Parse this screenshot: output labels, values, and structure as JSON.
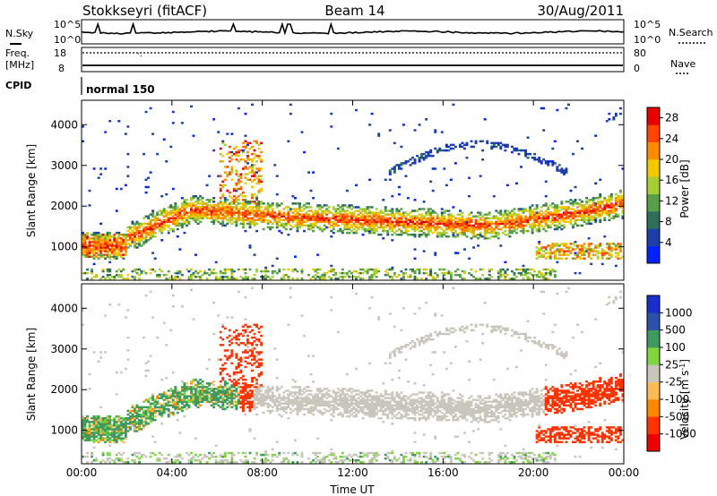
{
  "header": {
    "radar": "Stokkseyri (fitACF)",
    "beam": "Beam 14",
    "date": "30/Aug/2011"
  },
  "summary": {
    "nsky_label": "N.Sky",
    "nsky_ticks": [
      "10^5",
      "10^0"
    ],
    "nsearch_label": "N.Search",
    "nsearch_ticks": [
      "10^5",
      "10^0"
    ],
    "freq_label_1": "Freq.",
    "freq_label_2": "[MHz]",
    "freq_ticks": [
      "18",
      "8"
    ],
    "nave_label": "Nave",
    "nave_ticks": [
      "80",
      "0"
    ],
    "cpid_label": "CPID",
    "cpid_value": "normal 150"
  },
  "colors": {
    "power": [
      "#0022ff",
      "#1b3ea8",
      "#2e6e5a",
      "#57a048",
      "#a8cf32",
      "#f3c800",
      "#ff8c00",
      "#ff4500",
      "#e80000"
    ],
    "velocity": [
      "#ee0000",
      "#ff3300",
      "#ff8800",
      "#ffbb55",
      "#c9c7bd",
      "#7fd63e",
      "#3f9a5e",
      "#2a52a8",
      "#1a2ecc"
    ]
  },
  "chart_data": [
    {
      "type": "heatmap",
      "title": "Power",
      "xlabel": "",
      "ylabel": "Slant Range [km]",
      "x_ticks": [
        "00:00",
        "04:00",
        "08:00",
        "12:00",
        "16:00",
        "20:00",
        "00:00"
      ],
      "xlim_hours": [
        0,
        24
      ],
      "y_ticks": [
        1000,
        2000,
        3000,
        4000
      ],
      "ylim": [
        180,
        4600
      ],
      "colorbar_label": "Power [dB]",
      "colorbar_ticks": [
        4,
        8,
        12,
        16,
        20,
        24,
        28
      ],
      "colorbar_range": [
        0,
        30
      ]
    },
    {
      "type": "heatmap",
      "title": "Velocity",
      "xlabel": "Time UT",
      "ylabel": "Slant Range [km]",
      "x_ticks": [
        "00:00",
        "04:00",
        "08:00",
        "12:00",
        "16:00",
        "20:00",
        "00:00"
      ],
      "xlim_hours": [
        0,
        24
      ],
      "y_ticks": [
        1000,
        2000,
        3000,
        4000
      ],
      "ylim": [
        180,
        4600
      ],
      "colorbar_label": "Velocity [m s^-1]",
      "colorbar_ticks": [
        "1000",
        "500",
        "100",
        "25",
        "-25",
        "-100",
        "-500",
        "-1000"
      ],
      "colorbar_scale": [
        -1000,
        -500,
        -100,
        -25,
        25,
        100,
        500,
        1000
      ],
      "ground_scatter_color": "#c9c7bd"
    }
  ]
}
